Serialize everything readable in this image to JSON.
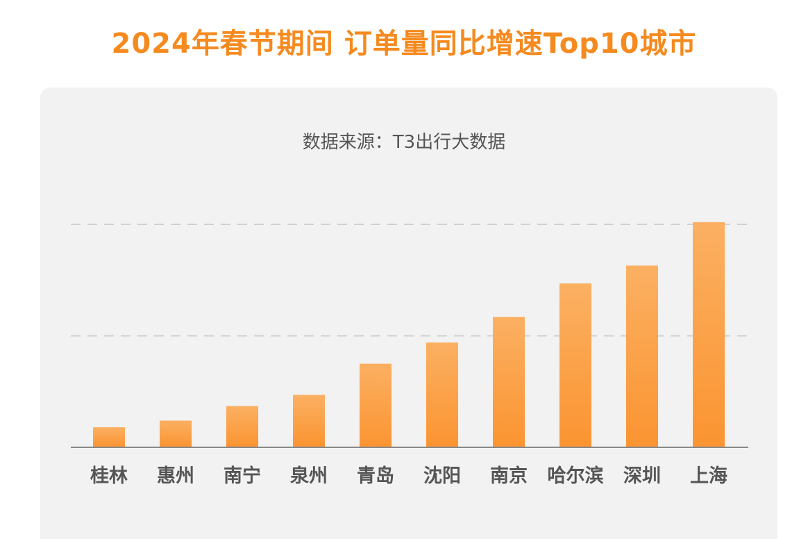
{
  "title": "2024年春节期间 订单量同比增速Top10城市",
  "subtitle": "数据来源：T3出行大数据",
  "colors": {
    "title": "#f58a1f",
    "bar_top": "#fbb062",
    "bar_bottom": "#fb9431",
    "card": "#f2f2f2",
    "axis": "#888888",
    "grid": "#d0d0d0"
  },
  "chart_data": {
    "type": "bar",
    "categories": [
      "桂林",
      "惠州",
      "南宁",
      "泉州",
      "青岛",
      "沈阳",
      "南京",
      "哈尔滨",
      "深圳",
      "上海"
    ],
    "values": [
      9,
      12,
      18.5,
      23.5,
      37.5,
      47,
      58.5,
      73.5,
      81.5,
      101
    ],
    "title": "2024年春节期间 订单量同比增速Top10城市",
    "ylim": [
      0,
      100
    ],
    "gridlines": [
      50,
      100
    ],
    "grid": true,
    "legend": "none"
  }
}
